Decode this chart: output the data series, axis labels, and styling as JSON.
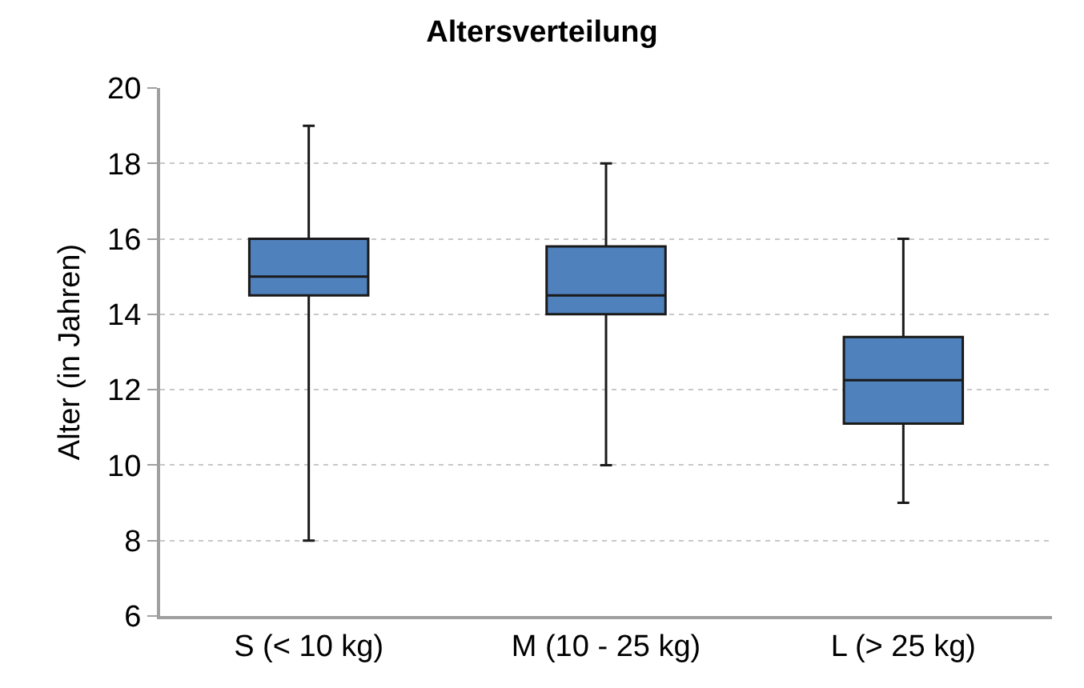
{
  "chart_data": {
    "type": "box",
    "title": "Altersverteilung",
    "ylabel": "Alter (in Jahren)",
    "categories": [
      "S (< 10 kg)",
      "M (10 - 25 kg)",
      "L (> 25 kg)"
    ],
    "color": "#4f81bd",
    "boxes": [
      {
        "low": 8,
        "q1": 14.5,
        "median": 15,
        "q3": 16,
        "high": 19
      },
      {
        "low": 10,
        "q1": 14,
        "median": 14.5,
        "q3": 15.8,
        "high": 18
      },
      {
        "low": 9,
        "q1": 11.1,
        "median": 12.25,
        "q3": 13.4,
        "high": 16
      }
    ],
    "ylim": [
      6,
      20
    ],
    "yticks": [
      6,
      8,
      10,
      12,
      14,
      16,
      18,
      20
    ],
    "grid": "y"
  }
}
